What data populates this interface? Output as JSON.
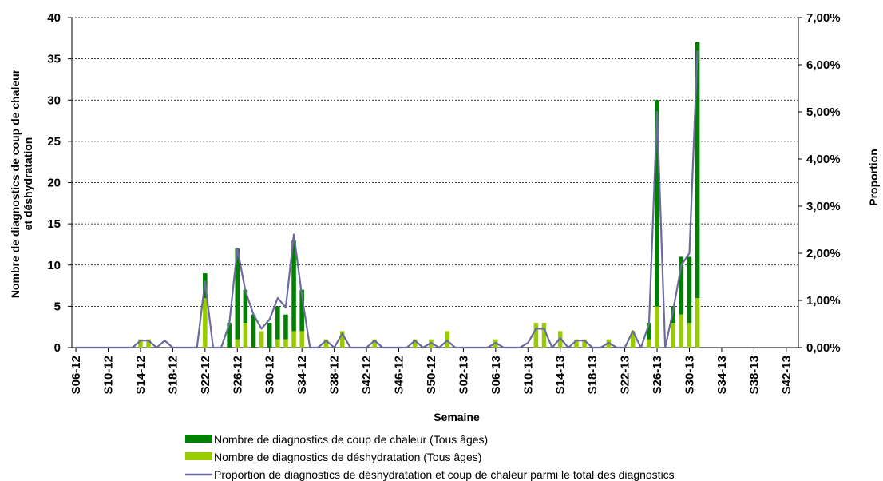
{
  "chart_data": {
    "type": "bar_line",
    "ylabel": [
      "Nombre de diagnostics de coup de chaleur",
      "et déshydratation"
    ],
    "y2label": "Proportion",
    "xlabel": "Semaine",
    "categories": [
      "S06-12",
      null,
      null,
      null,
      "S10-12",
      null,
      null,
      null,
      "S14-12",
      null,
      null,
      null,
      "S18-12",
      null,
      null,
      null,
      "S22-12",
      null,
      null,
      null,
      "S26-12",
      null,
      null,
      null,
      "S30-12",
      null,
      null,
      null,
      "S34-12",
      null,
      null,
      null,
      "S38-12",
      null,
      null,
      null,
      "S42-12",
      null,
      null,
      null,
      "S46-12",
      null,
      null,
      null,
      "S50-12",
      null,
      null,
      null,
      "S02-13",
      null,
      null,
      null,
      "S06-13",
      null,
      null,
      null,
      "S10-13",
      null,
      null,
      null,
      "S14-13",
      null,
      null,
      null,
      "S18-13",
      null,
      null,
      null,
      "S22-13",
      null,
      null,
      null,
      "S26-13",
      null,
      null,
      null,
      "S30-13",
      null,
      null,
      null,
      "S34-13",
      null,
      null,
      null,
      "S38-13",
      null,
      null,
      null,
      "S42-13",
      null
    ],
    "series": [
      {
        "name": "Nombre de diagnostics de coup de chaleur (Tous âges)",
        "color": "#008000",
        "kind": "bar",
        "values": [
          0,
          0,
          0,
          0,
          0,
          0,
          0,
          0,
          0,
          0,
          0,
          0,
          0,
          0,
          0,
          0,
          3,
          0,
          0,
          3,
          11,
          4,
          4,
          0,
          3,
          4,
          3,
          11,
          5,
          0,
          0,
          0,
          0,
          0,
          0,
          0,
          0,
          0,
          0,
          0,
          0,
          0,
          0,
          0,
          0,
          0,
          0,
          0,
          0,
          0,
          0,
          0,
          0,
          0,
          0,
          0,
          0,
          0,
          0,
          0,
          0,
          0,
          0,
          0,
          0,
          0,
          0,
          0,
          0,
          0,
          0,
          2,
          25,
          0,
          2,
          7,
          8,
          31,
          null,
          null,
          null,
          null,
          null,
          null,
          null,
          null,
          null,
          null,
          null,
          null
        ]
      },
      {
        "name": "Nombre de diagnostics de déshydratation (Tous âges)",
        "color": "#99cc00",
        "kind": "bar",
        "values": [
          0,
          0,
          0,
          0,
          0,
          0,
          0,
          0,
          1,
          1,
          0,
          0,
          0,
          0,
          0,
          0,
          6,
          0,
          0,
          0,
          1,
          3,
          0,
          2,
          0,
          1,
          1,
          2,
          2,
          0,
          0,
          1,
          0,
          2,
          0,
          0,
          0,
          1,
          0,
          0,
          0,
          0,
          1,
          0,
          1,
          0,
          2,
          0,
          0,
          0,
          0,
          0,
          1,
          0,
          0,
          0,
          0,
          3,
          3,
          0,
          2,
          0,
          1,
          1,
          0,
          0,
          1,
          0,
          0,
          2,
          0,
          1,
          5,
          0,
          3,
          4,
          3,
          6,
          null,
          null,
          null,
          null,
          null,
          null,
          null,
          null,
          null,
          null,
          null,
          null
        ]
      },
      {
        "name": "Proportion de diagnostics de déshydratation et coup de chaleur parmi le total des diagnostics",
        "color": "#6b6b9c",
        "kind": "line",
        "axis": "y2",
        "values": [
          0,
          0,
          0,
          0,
          0,
          0,
          0,
          0,
          0.15,
          0.15,
          0,
          0.15,
          0,
          0,
          0,
          0,
          1.4,
          0,
          0,
          0.5,
          2.1,
          1.2,
          0.7,
          0.4,
          0.6,
          1.05,
          0.85,
          2.4,
          1.1,
          0,
          0,
          0.15,
          0,
          0.3,
          0,
          0,
          0,
          0.15,
          0,
          0,
          0,
          0,
          0.15,
          0,
          0.1,
          0,
          0.15,
          0,
          0,
          0,
          0,
          0,
          0.1,
          0,
          0,
          0,
          0.1,
          0.4,
          0.4,
          0,
          0.2,
          0,
          0.15,
          0.15,
          0,
          0,
          0.1,
          0,
          0,
          0.35,
          0,
          0.5,
          5.0,
          0,
          0.8,
          1.75,
          2.0,
          6.3,
          null,
          null,
          null,
          null,
          null,
          null,
          null,
          null,
          null,
          null,
          null,
          null
        ]
      }
    ],
    "ylim": [
      0,
      40
    ],
    "yticks": [
      0,
      5,
      10,
      15,
      20,
      25,
      30,
      35,
      40
    ],
    "y2lim": [
      0,
      7
    ],
    "y2ticks": [
      {
        "value": 0,
        "label": "0,00%"
      },
      {
        "value": 1,
        "label": "1,00%"
      },
      {
        "value": 2,
        "label": "2,00%"
      },
      {
        "value": 3,
        "label": "3,00%"
      },
      {
        "value": 4,
        "label": "4,00%"
      },
      {
        "value": 5,
        "label": "5,00%"
      },
      {
        "value": 6,
        "label": "6,00%"
      },
      {
        "value": 7,
        "label": "7,00%"
      }
    ],
    "grid": true,
    "legend": "bottom"
  }
}
